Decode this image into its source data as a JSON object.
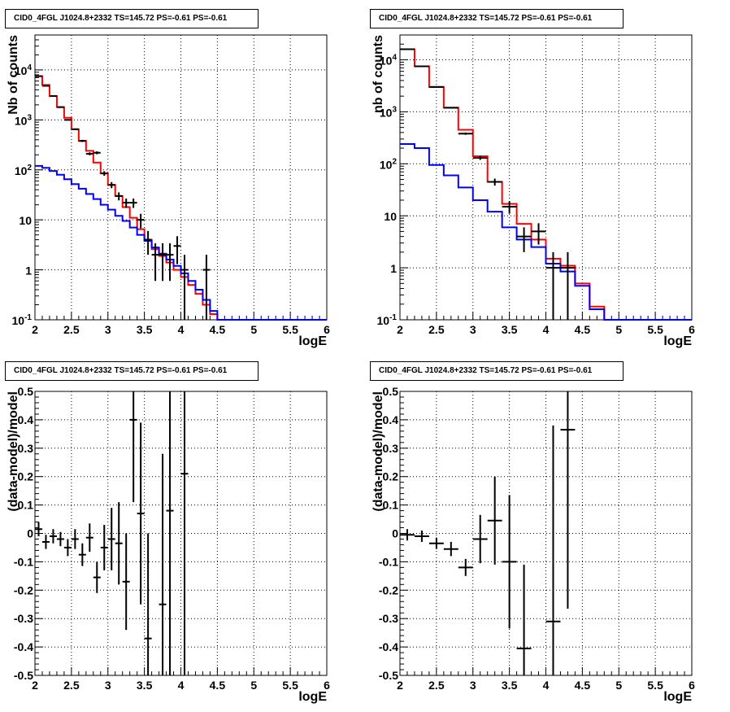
{
  "chart_data": [
    {
      "type": "line",
      "title": "CID0_4FGL J1024.8+2332 TS=145.72 PS=-0.61 PS=-0.61",
      "xlabel": "logE",
      "ylabel": "Nb of counts",
      "xlim": [
        2,
        6
      ],
      "ylim": [
        0.1,
        50000
      ],
      "yscale": "log",
      "grid": true,
      "xticks": [
        "2",
        "2.5",
        "3",
        "3.5",
        "4",
        "4.5",
        "5",
        "5.5",
        "6"
      ],
      "yticks": [
        "10^{-1}",
        "1",
        "10",
        "10^{2}",
        "10^{3}",
        "10^{4}"
      ],
      "bin_edges": [
        2.0,
        2.1,
        2.2,
        2.3,
        2.4,
        2.5,
        2.6,
        2.7,
        2.8,
        2.9,
        3.0,
        3.1,
        3.2,
        3.3,
        3.4,
        3.5,
        3.6,
        3.7,
        3.8,
        3.9,
        4.0,
        4.1,
        4.2,
        4.3,
        4.4,
        4.5,
        4.6,
        4.7,
        4.8,
        4.9,
        5.0,
        5.1,
        5.2,
        5.3,
        5.4,
        5.5,
        5.6,
        5.7,
        5.8,
        5.9,
        6.0
      ],
      "series": [
        {
          "color": "#ff0000",
          "style": "histogram",
          "values": [
            7500,
            5000,
            3000,
            1800,
            1100,
            650,
            380,
            240,
            140,
            85,
            50,
            30,
            18,
            11,
            6.5,
            4,
            2.6,
            1.9,
            1.4,
            1.0,
            0.72,
            0.5,
            0.33,
            0.2,
            0.13,
            0.1,
            0.1,
            0.1,
            0.1,
            0.1,
            0.1,
            0.1,
            0.1,
            0.1,
            0.1,
            0.1,
            0.1,
            0.1,
            0.1,
            0.1
          ]
        },
        {
          "color": "#0000ff",
          "style": "histogram",
          "values": [
            120,
            110,
            95,
            80,
            65,
            52,
            42,
            33,
            26,
            20,
            16,
            12,
            9.5,
            7,
            5,
            3.8,
            2.8,
            2.1,
            1.6,
            1.2,
            0.85,
            0.6,
            0.4,
            0.25,
            0.15,
            0.1,
            0.1,
            0.1,
            0.1,
            0.1,
            0.1,
            0.1,
            0.1,
            0.1,
            0.1,
            0.1,
            0.1,
            0.1,
            0.1,
            0.1
          ]
        },
        {
          "color": "#000000",
          "style": "points",
          "points": [
            {
              "x": 2.05,
              "y": 7500,
              "err": 87
            },
            {
              "x": 2.15,
              "y": 4800,
              "err": 69
            },
            {
              "x": 2.25,
              "y": 3000,
              "err": 55
            },
            {
              "x": 2.35,
              "y": 1800,
              "err": 42
            },
            {
              "x": 2.45,
              "y": 1000,
              "err": 32
            },
            {
              "x": 2.55,
              "y": 650,
              "err": 25
            },
            {
              "x": 2.65,
              "y": 380,
              "err": 19
            },
            {
              "x": 2.75,
              "y": 210,
              "err": 14
            },
            {
              "x": 2.85,
              "y": 220,
              "err": 15
            },
            {
              "x": 2.95,
              "y": 85,
              "err": 9
            },
            {
              "x": 3.05,
              "y": 50,
              "err": 7
            },
            {
              "x": 3.15,
              "y": 30,
              "err": 5.5
            },
            {
              "x": 3.25,
              "y": 22,
              "err": 4.7
            },
            {
              "x": 3.35,
              "y": 22,
              "err": 4.7
            },
            {
              "x": 3.45,
              "y": 10,
              "err": 3.2
            },
            {
              "x": 3.55,
              "y": 4,
              "err": 2
            },
            {
              "x": 3.65,
              "y": 2,
              "err": 1.4
            },
            {
              "x": 3.75,
              "y": 2,
              "err": 1.4
            },
            {
              "x": 3.85,
              "y": 2,
              "err": 1.4
            },
            {
              "x": 3.95,
              "y": 3,
              "err": 1.7
            },
            {
              "x": 4.05,
              "y": 1,
              "err": 1
            },
            {
              "x": 4.35,
              "y": 1,
              "err": 1
            }
          ]
        }
      ]
    },
    {
      "type": "line",
      "title": "CID0_4FGL J1024.8+2332 TS=145.72 PS=-0.61 PS=-0.61",
      "xlabel": "logE",
      "ylabel": "nb of counts",
      "xlim": [
        2,
        6
      ],
      "ylim": [
        0.1,
        30000
      ],
      "yscale": "log",
      "grid": true,
      "xticks": [
        "2",
        "2.5",
        "3",
        "3.5",
        "4",
        "4.5",
        "5",
        "5.5",
        "6"
      ],
      "yticks": [
        "10^{-1}",
        "1",
        "10",
        "10^{2}",
        "10^{3}",
        "10^{4}"
      ],
      "bin_edges": [
        2.0,
        2.2,
        2.4,
        2.6,
        2.8,
        3.0,
        3.2,
        3.4,
        3.6,
        3.8,
        4.0,
        4.2,
        4.4,
        4.6,
        4.8,
        5.0,
        5.2,
        5.4,
        5.6,
        5.8,
        6.0
      ],
      "series": [
        {
          "color": "#ff0000",
          "style": "histogram",
          "values": [
            16000,
            7500,
            3000,
            1200,
            450,
            140,
            45,
            17,
            7,
            3.5,
            1.5,
            1.1,
            0.5,
            0.18,
            0.1,
            0.1,
            0.1,
            0.1,
            0.1,
            0.1
          ]
        },
        {
          "color": "#0000ff",
          "style": "histogram",
          "values": [
            240,
            200,
            95,
            60,
            35,
            20,
            12,
            6,
            3.5,
            2.5,
            1.2,
            0.85,
            0.45,
            0.16,
            0.1,
            0.1,
            0.1,
            0.1,
            0.1,
            0.1
          ]
        },
        {
          "color": "#000000",
          "style": "points",
          "points": [
            {
              "x": 2.1,
              "y": 16000,
              "err": 126
            },
            {
              "x": 2.3,
              "y": 7500,
              "err": 87
            },
            {
              "x": 2.5,
              "y": 3000,
              "err": 55
            },
            {
              "x": 2.7,
              "y": 1200,
              "err": 35
            },
            {
              "x": 2.9,
              "y": 380,
              "err": 19
            },
            {
              "x": 3.1,
              "y": 130,
              "err": 11
            },
            {
              "x": 3.3,
              "y": 45,
              "err": 7
            },
            {
              "x": 3.5,
              "y": 15,
              "err": 4
            },
            {
              "x": 3.7,
              "y": 4,
              "err": 2
            },
            {
              "x": 3.9,
              "y": 5,
              "err": 2.2
            },
            {
              "x": 4.1,
              "y": 1,
              "err": 1
            },
            {
              "x": 4.3,
              "y": 1,
              "err": 1
            }
          ]
        }
      ]
    },
    {
      "type": "scatter",
      "title": "CID0_4FGL J1024.8+2332 TS=145.72 PS=-0.61 PS=-0.61",
      "xlabel": "logE",
      "ylabel": "(data-model)/model",
      "xlim": [
        2,
        6
      ],
      "ylim": [
        -0.5,
        0.5
      ],
      "grid": true,
      "xticks": [
        "2",
        "2.5",
        "3",
        "3.5",
        "4",
        "4.5",
        "5",
        "5.5",
        "6"
      ],
      "yticks": [
        "-0.5",
        "-0.4",
        "-0.3",
        "-0.2",
        "-0.1",
        "0",
        "0.1",
        "0.2",
        "0.3",
        "0.4",
        "0.5"
      ],
      "series": [
        {
          "color": "#000000",
          "points": [
            {
              "x": 2.05,
              "y": 0.015,
              "err": 0.025
            },
            {
              "x": 2.15,
              "y": -0.03,
              "err": 0.025
            },
            {
              "x": 2.25,
              "y": -0.01,
              "err": 0.025
            },
            {
              "x": 2.35,
              "y": -0.02,
              "err": 0.025
            },
            {
              "x": 2.45,
              "y": -0.05,
              "err": 0.03
            },
            {
              "x": 2.55,
              "y": -0.02,
              "err": 0.035
            },
            {
              "x": 2.65,
              "y": -0.075,
              "err": 0.04
            },
            {
              "x": 2.75,
              "y": -0.015,
              "err": 0.05
            },
            {
              "x": 2.85,
              "y": -0.155,
              "err": 0.055
            },
            {
              "x": 2.95,
              "y": -0.05,
              "err": 0.08
            },
            {
              "x": 3.05,
              "y": -0.02,
              "err": 0.11
            },
            {
              "x": 3.15,
              "y": -0.035,
              "err": 0.145
            },
            {
              "x": 3.25,
              "y": -0.17,
              "err": 0.17
            },
            {
              "x": 3.35,
              "y": 0.4,
              "err": 0.29
            },
            {
              "x": 3.45,
              "y": 0.07,
              "err": 0.32
            },
            {
              "x": 3.55,
              "y": -0.37,
              "err": 0.37
            },
            {
              "x": 3.75,
              "y": -0.25,
              "err": 0.53
            },
            {
              "x": 3.85,
              "y": 0.08,
              "err": 0.7
            },
            {
              "x": 4.05,
              "y": 0.21,
              "err": 1.0
            }
          ]
        }
      ]
    },
    {
      "type": "scatter",
      "title": "CID0_4FGL J1024.8+2332 TS=145.72 PS=-0.61 PS=-0.61",
      "xlabel": "logE",
      "ylabel": "(data-model)/model",
      "xlim": [
        2,
        6
      ],
      "ylim": [
        -0.5,
        0.5
      ],
      "grid": true,
      "xticks": [
        "2",
        "2.5",
        "3",
        "3.5",
        "4",
        "4.5",
        "5",
        "5.5",
        "6"
      ],
      "yticks": [
        "-0.5",
        "-0.4",
        "-0.3",
        "-0.2",
        "-0.1",
        "0",
        "0.1",
        "0.2",
        "0.3",
        "0.4",
        "0.5"
      ],
      "series": [
        {
          "color": "#000000",
          "points": [
            {
              "x": 2.1,
              "y": -0.005,
              "err": 0.02
            },
            {
              "x": 2.3,
              "y": -0.01,
              "err": 0.02
            },
            {
              "x": 2.5,
              "y": -0.035,
              "err": 0.02
            },
            {
              "x": 2.7,
              "y": -0.055,
              "err": 0.025
            },
            {
              "x": 2.9,
              "y": -0.12,
              "err": 0.03
            },
            {
              "x": 3.1,
              "y": -0.02,
              "err": 0.085
            },
            {
              "x": 3.3,
              "y": 0.045,
              "err": 0.155
            },
            {
              "x": 3.5,
              "y": -0.1,
              "err": 0.235
            },
            {
              "x": 3.7,
              "y": -0.405,
              "err": 0.295
            },
            {
              "x": 4.1,
              "y": -0.31,
              "err": 0.69
            },
            {
              "x": 4.3,
              "y": 0.365,
              "err": 0.63
            }
          ]
        }
      ]
    }
  ]
}
